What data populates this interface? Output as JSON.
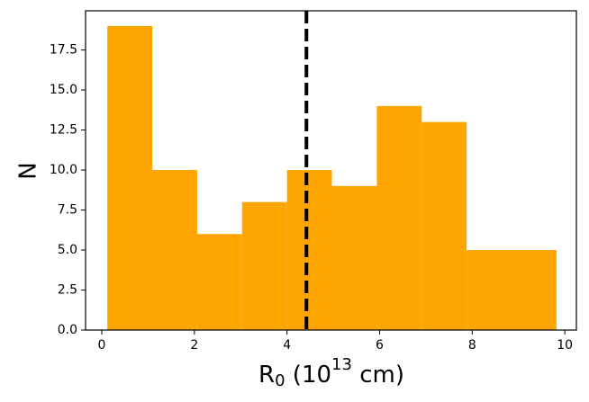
{
  "chart_data": {
    "type": "histogram",
    "bins": [
      0.12,
      1.09,
      2.06,
      3.03,
      4.0,
      4.97,
      5.94,
      6.91,
      7.88,
      8.85,
      9.82
    ],
    "values": [
      19,
      10,
      6,
      8,
      10,
      9,
      14,
      13,
      5,
      5
    ],
    "color": "#ffa500",
    "vline": 4.42,
    "vline_color": "#000000",
    "xlabel": [
      "R",
      "0",
      " (10",
      "13",
      " cm)"
    ],
    "ylabel": "N",
    "xlim": [
      -0.35,
      10.25
    ],
    "ylim": [
      0,
      19.95
    ],
    "xticks": [
      0,
      2,
      4,
      6,
      8,
      10
    ],
    "yticks": [
      {
        "value": 0,
        "label": "0.0"
      },
      {
        "value": 2.5,
        "label": "2.5"
      },
      {
        "value": 5,
        "label": "5.0"
      },
      {
        "value": 7.5,
        "label": "7.5"
      },
      {
        "value": 10,
        "label": "10.0"
      },
      {
        "value": 12.5,
        "label": "12.5"
      },
      {
        "value": 15,
        "label": "15.0"
      },
      {
        "value": 17.5,
        "label": "17.5"
      }
    ],
    "grid": false
  }
}
